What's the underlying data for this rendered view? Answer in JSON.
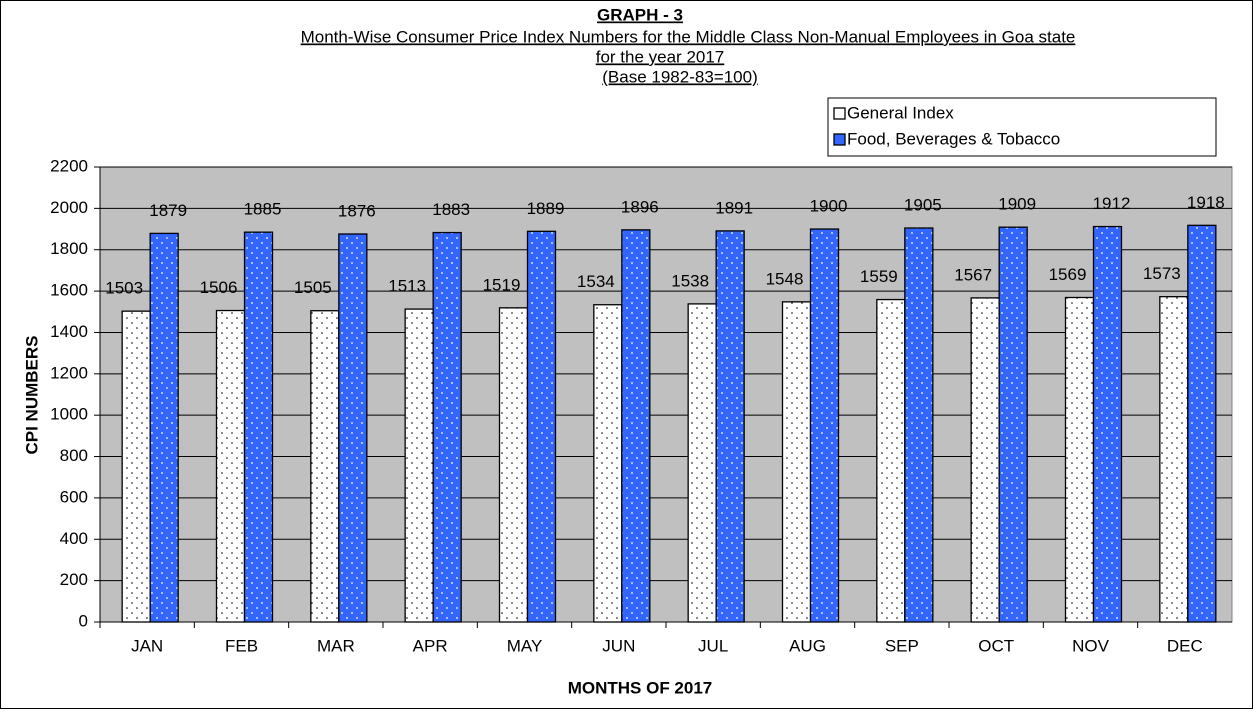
{
  "chart_data": {
    "type": "bar",
    "title": "GRAPH - 3",
    "subtitle": [
      "Month-Wise Consumer Price Index Numbers for the Middle Class Non-Manual Employees in Goa state",
      "for the year 2017",
      "(Base 1982-83=100)"
    ],
    "x_label": "MONTHS OF 2017",
    "y_label": "CPI NUMBERS",
    "categories": [
      "JAN",
      "FEB",
      "MAR",
      "APR",
      "MAY",
      "JUN",
      "JUL",
      "AUG",
      "SEP",
      "OCT",
      "NOV",
      "DEC"
    ],
    "series": [
      {
        "name": "General Index",
        "color": "#ffffff",
        "values": [
          1503,
          1506,
          1505,
          1513,
          1519,
          1534,
          1538,
          1548,
          1559,
          1567,
          1569,
          1573
        ]
      },
      {
        "name": "Food, Beverages & Tobacco",
        "color": "#3366ff",
        "values": [
          1879,
          1885,
          1876,
          1883,
          1889,
          1896,
          1891,
          1900,
          1905,
          1909,
          1912,
          1918
        ]
      }
    ],
    "ylim": [
      0,
      2200
    ],
    "yticks": [
      0,
      200,
      400,
      600,
      800,
      1000,
      1200,
      1400,
      1600,
      1800,
      2000,
      2200
    ],
    "grid": true,
    "legend": "top-right",
    "plot_background": "#c0c0c0"
  }
}
